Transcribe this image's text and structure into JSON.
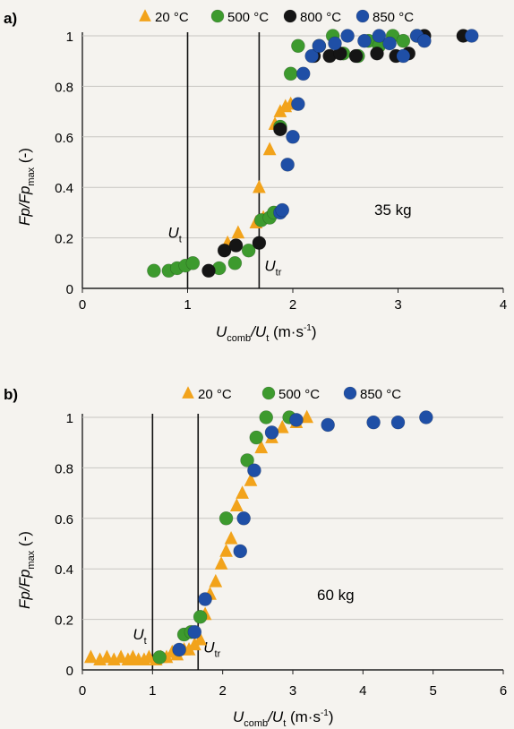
{
  "chart_data": [
    {
      "type": "scatter",
      "panel_label": "a)",
      "annotation": "35 kg",
      "xlabel_main": "U",
      "xlabel_sub": "comb",
      "xlabel_mid": "/U",
      "xlabel_sub2": "t",
      "xlabel_unit": " (m·s",
      "xlabel_exp": "-1",
      "xlabel_close": ")",
      "ylabel_a": "Fp",
      "ylabel_b": "/Fp",
      "ylabel_sub": "max",
      "ylabel_unit": " (-)",
      "xlim": [
        0,
        4
      ],
      "ylim": [
        0,
        1
      ],
      "x_ticks": [
        0,
        1,
        2,
        3,
        4
      ],
      "y_ticks": [
        0,
        0.2,
        0.4,
        0.6,
        0.8,
        1
      ],
      "y_tick_labels": [
        "0",
        "0.2",
        "0.4",
        "0.6",
        "0.8",
        "1"
      ],
      "grid": "horizontal",
      "legend_position": "top",
      "vlines": [
        {
          "x": 1.0,
          "label": "U",
          "sub": "t",
          "label_side": "left",
          "label_y": 0.2
        },
        {
          "x": 1.68,
          "label": "U",
          "sub": "tr",
          "label_side": "right",
          "label_y": 0.07
        }
      ],
      "series": [
        {
          "name": "20 °C",
          "marker": "triangle",
          "color": "#f2a31b",
          "x": [
            1.38,
            1.48,
            1.65,
            1.68,
            1.72,
            1.78,
            1.83,
            1.88,
            1.93,
            1.98
          ],
          "y": [
            0.18,
            0.22,
            0.26,
            0.4,
            0.28,
            0.55,
            0.65,
            0.7,
            0.72,
            0.73
          ]
        },
        {
          "name": "500 °C",
          "marker": "circle",
          "color": "#3d9a2e",
          "x": [
            0.68,
            0.82,
            0.9,
            0.98,
            1.05,
            1.3,
            1.45,
            1.58,
            1.7,
            1.78,
            1.82,
            1.88,
            1.98,
            2.05,
            2.25,
            2.38,
            2.48,
            2.62,
            2.72,
            2.82,
            2.95,
            3.05,
            3.18
          ],
          "y": [
            0.07,
            0.07,
            0.08,
            0.09,
            0.1,
            0.08,
            0.1,
            0.15,
            0.27,
            0.28,
            0.3,
            0.64,
            0.85,
            0.96,
            0.96,
            1.0,
            0.93,
            0.92,
            0.98,
            0.96,
            1.0,
            0.98,
            1.0
          ]
        },
        {
          "name": "800 °C",
          "marker": "circle",
          "color": "#151515",
          "x": [
            1.2,
            1.35,
            1.46,
            1.68,
            1.88,
            2.2,
            2.35,
            2.45,
            2.6,
            2.8,
            2.98,
            3.1,
            3.25,
            3.62
          ],
          "y": [
            0.07,
            0.15,
            0.17,
            0.18,
            0.63,
            0.92,
            0.92,
            0.93,
            0.92,
            0.93,
            0.92,
            0.93,
            1.0,
            1.0
          ]
        },
        {
          "name": "850 °C",
          "marker": "circle",
          "color": "#1f4fa6",
          "x": [
            1.88,
            1.9,
            1.95,
            2.0,
            2.05,
            2.1,
            2.18,
            2.25,
            2.4,
            2.52,
            2.68,
            2.82,
            2.92,
            3.05,
            3.18,
            3.25,
            3.7
          ],
          "y": [
            0.3,
            0.31,
            0.49,
            0.6,
            0.73,
            0.85,
            0.92,
            0.96,
            0.97,
            1.0,
            0.98,
            1.0,
            0.97,
            0.92,
            1.0,
            0.98,
            1.0
          ]
        }
      ]
    },
    {
      "type": "scatter",
      "panel_label": "b)",
      "annotation": "60 kg",
      "xlabel_main": "U",
      "xlabel_sub": "comb",
      "xlabel_mid": "/U",
      "xlabel_sub2": "t",
      "xlabel_unit": " (m·s",
      "xlabel_exp": "-1",
      "xlabel_close": ")",
      "ylabel_a": "Fp",
      "ylabel_b": "/Fp",
      "ylabel_sub": "max",
      "ylabel_unit": " (-)",
      "xlim": [
        0,
        6
      ],
      "ylim": [
        0,
        1
      ],
      "x_ticks": [
        0,
        1,
        2,
        3,
        4,
        5,
        6
      ],
      "y_ticks": [
        0,
        0.2,
        0.4,
        0.6,
        0.8,
        1
      ],
      "y_tick_labels": [
        "0",
        "0.2",
        "0.4",
        "0.6",
        "0.8",
        "1"
      ],
      "grid": "horizontal",
      "legend_position": "top",
      "vlines": [
        {
          "x": 1.0,
          "label": "U",
          "sub": "t",
          "label_side": "left",
          "label_y": 0.12
        },
        {
          "x": 1.65,
          "label": "U",
          "sub": "tr",
          "label_side": "right",
          "label_y": 0.07
        }
      ],
      "series": [
        {
          "name": "20 °C",
          "marker": "triangle",
          "color": "#f2a31b",
          "x": [
            0.12,
            0.25,
            0.35,
            0.45,
            0.55,
            0.65,
            0.72,
            0.8,
            0.88,
            0.95,
            1.05,
            1.12,
            1.2,
            1.28,
            1.35,
            1.45,
            1.52,
            1.6,
            1.68,
            1.75,
            1.82,
            1.9,
            1.98,
            2.05,
            2.12,
            2.2,
            2.28,
            2.4,
            2.55,
            2.7,
            2.85,
            3.05,
            3.2
          ],
          "y": [
            0.05,
            0.04,
            0.05,
            0.04,
            0.05,
            0.04,
            0.05,
            0.04,
            0.04,
            0.05,
            0.04,
            0.05,
            0.05,
            0.07,
            0.06,
            0.08,
            0.08,
            0.1,
            0.12,
            0.22,
            0.3,
            0.35,
            0.42,
            0.47,
            0.52,
            0.65,
            0.7,
            0.75,
            0.88,
            0.92,
            0.96,
            0.98,
            1.0
          ]
        },
        {
          "name": "500 °C",
          "marker": "circle",
          "color": "#3d9a2e",
          "x": [
            1.1,
            1.45,
            1.55,
            1.68,
            2.05,
            2.35,
            2.48,
            2.62,
            2.95
          ],
          "y": [
            0.05,
            0.14,
            0.15,
            0.21,
            0.6,
            0.83,
            0.92,
            1.0,
            1.0
          ]
        },
        {
          "name": "850 °C",
          "marker": "circle",
          "color": "#1f4fa6",
          "x": [
            1.38,
            1.6,
            1.75,
            2.25,
            2.3,
            2.45,
            2.7,
            3.05,
            3.5,
            4.15,
            4.5,
            4.9
          ],
          "y": [
            0.08,
            0.15,
            0.28,
            0.47,
            0.6,
            0.79,
            0.94,
            0.99,
            0.97,
            0.98,
            0.98,
            1.0
          ]
        }
      ]
    }
  ]
}
